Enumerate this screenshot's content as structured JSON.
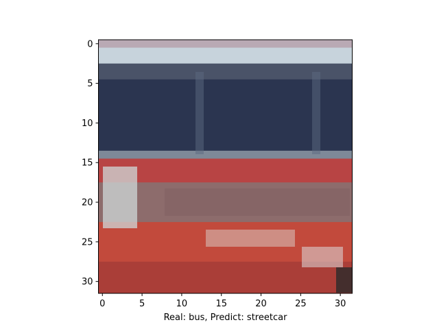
{
  "chart_data": {
    "type": "heatmap",
    "title": "",
    "xlabel": "Real: bus, Predict: streetcar",
    "ylabel": "",
    "xlim": [
      -0.5,
      31.5
    ],
    "ylim": [
      31.5,
      -0.5
    ],
    "grid": false,
    "x_ticks": [
      "0",
      "5",
      "10",
      "15",
      "20",
      "25",
      "30"
    ],
    "y_ticks": [
      "0",
      "5",
      "10",
      "15",
      "20",
      "25",
      "30"
    ],
    "image_grid": [
      32,
      32
    ],
    "image_bands": [
      {
        "rows": [
          0,
          0
        ],
        "color": "#b9a9b4"
      },
      {
        "rows": [
          1,
          2
        ],
        "color": "#c7d3dc"
      },
      {
        "rows": [
          3,
          4
        ],
        "color": "#4a5368"
      },
      {
        "rows": [
          5,
          13
        ],
        "color": "#2b3550"
      },
      {
        "rows": [
          14,
          14
        ],
        "color": "#7e8998"
      },
      {
        "rows": [
          15,
          17
        ],
        "color": "#b84444"
      },
      {
        "rows": [
          18,
          22
        ],
        "color": "#8d6c6c"
      },
      {
        "rows": [
          23,
          27
        ],
        "color": "#c24a3c"
      },
      {
        "rows": [
          28,
          31
        ],
        "color": "#aa3e38"
      }
    ]
  }
}
